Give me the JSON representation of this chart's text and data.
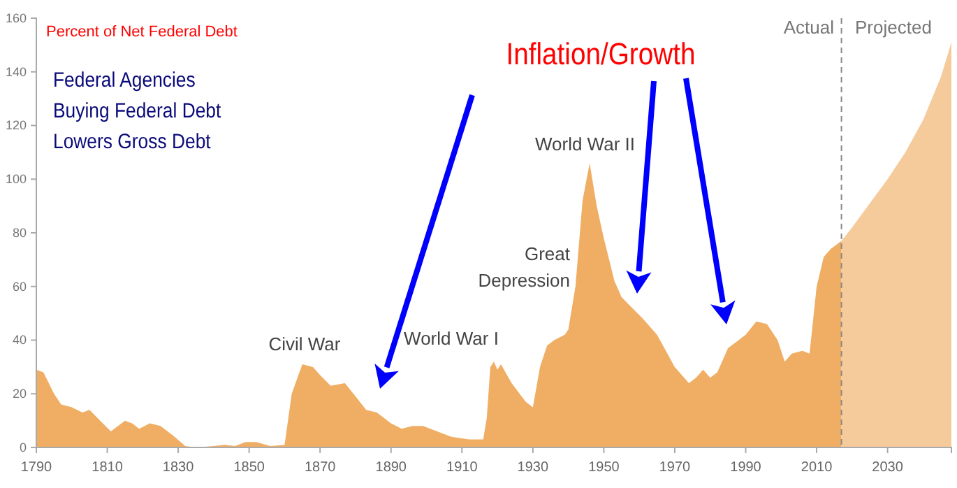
{
  "chart_data": {
    "type": "area",
    "xlim": [
      1790,
      2048
    ],
    "xticks": [
      1790,
      1810,
      1830,
      1850,
      1870,
      1890,
      1910,
      1930,
      1950,
      1970,
      1990,
      2010,
      2030
    ],
    "ylim": [
      0,
      160
    ],
    "yticks": [
      0,
      20,
      40,
      60,
      80,
      100,
      120,
      140,
      160
    ],
    "series": [
      {
        "color": "#f0ae64",
        "x": [
          1790,
          1792,
          1795,
          1797,
          1800,
          1803,
          1805,
          1808,
          1811,
          1815,
          1817,
          1819,
          1822,
          1825,
          1829,
          1832,
          1835,
          1840,
          1843,
          1846,
          1849,
          1852,
          1856,
          1860,
          1862,
          1865,
          1868,
          1870,
          1873,
          1877,
          1880,
          1883,
          1886,
          1890,
          1893,
          1896,
          1899,
          1903,
          1907,
          1912,
          1916,
          1917,
          1918,
          1919,
          1920,
          1921,
          1924,
          1928,
          1930,
          1932,
          1934,
          1936,
          1939,
          1940,
          1942,
          1944,
          1946,
          1948,
          1950,
          1953,
          1955,
          1958,
          1961,
          1965,
          1970,
          1974,
          1976,
          1978,
          1980,
          1982,
          1985,
          1988,
          1990,
          1993,
          1996,
          1999,
          2001,
          2003,
          2006,
          2008,
          2010,
          2012,
          2014,
          2017
        ],
        "values": [
          29,
          28,
          20,
          16,
          15,
          13,
          14,
          10,
          6,
          10,
          9,
          7,
          9,
          8,
          4,
          0.5,
          0,
          0.5,
          1,
          0.5,
          2,
          2,
          0.5,
          1,
          20,
          31,
          30,
          27,
          23,
          24,
          19,
          14,
          13,
          9,
          7,
          8,
          8,
          6,
          4,
          3,
          3,
          11,
          30,
          32,
          29,
          31,
          24,
          17,
          15,
          30,
          38,
          40,
          42,
          44,
          60,
          92,
          106,
          90,
          78,
          62,
          56,
          52,
          48,
          42,
          30,
          24,
          26,
          29,
          26,
          28,
          37,
          40,
          42,
          47,
          46,
          40,
          32,
          35,
          36,
          35,
          60,
          71,
          74,
          77
        ]
      },
      {
        "color": "#f6cb9c",
        "x": [
          2017,
          2020,
          2025,
          2030,
          2035,
          2040,
          2045,
          2048
        ],
        "values": [
          77,
          82,
          91,
          100,
          110,
          122,
          138,
          151
        ]
      }
    ],
    "ref_lines": [
      {
        "axis": "x",
        "value": 2017,
        "color": "#888888",
        "line_style": "dashed"
      }
    ],
    "annotations": [
      "Percent  of Net Federal Debt",
      "Federal Agencies\nBuying Federal Debt\nLowers Gross Debt",
      "Inflation/Growth",
      {
        "text": "Civil War",
        "x": 1866,
        "y": 31
      },
      {
        "text": "World War I",
        "x": 1918,
        "y": 32
      },
      "Great\nDepression",
      {
        "text": "World War II",
        "x": 1945,
        "y": 106
      },
      "Actual",
      "Projected"
    ]
  }
}
